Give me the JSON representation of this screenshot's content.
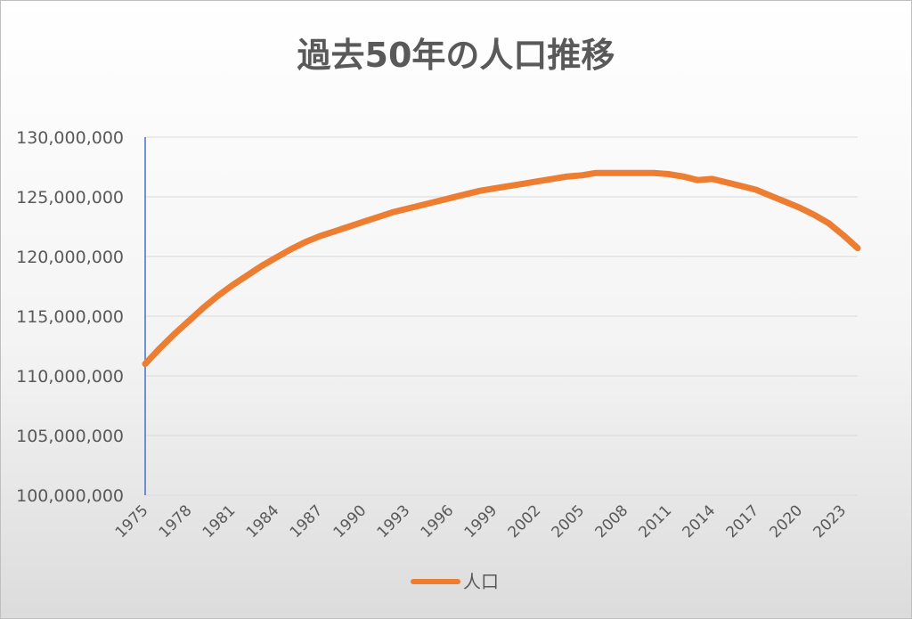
{
  "chart_data": {
    "type": "line",
    "title": "過去50年の人口推移",
    "xlabel": "",
    "ylabel": "",
    "ylim": [
      100000000,
      130000000
    ],
    "yticks": [
      100000000,
      105000000,
      110000000,
      115000000,
      120000000,
      125000000,
      130000000
    ],
    "ytick_labels": [
      "100,000,000",
      "105,000,000",
      "110,000,000",
      "115,000,000",
      "120,000,000",
      "125,000,000",
      "130,000,000"
    ],
    "xtick_labels": [
      "1975",
      "1978",
      "1981",
      "1984",
      "1987",
      "1990",
      "1993",
      "1996",
      "1999",
      "2002",
      "2005",
      "2008",
      "2011",
      "2014",
      "2017",
      "2020",
      "2023"
    ],
    "grid": true,
    "legend_position": "bottom",
    "series": [
      {
        "name": "人口",
        "color": "#ed7d31",
        "x": [
          1975,
          1976,
          1977,
          1978,
          1979,
          1980,
          1981,
          1982,
          1983,
          1984,
          1985,
          1986,
          1987,
          1988,
          1989,
          1990,
          1991,
          1992,
          1993,
          1994,
          1995,
          1996,
          1997,
          1998,
          1999,
          2000,
          2001,
          2002,
          2003,
          2004,
          2005,
          2006,
          2007,
          2008,
          2009,
          2010,
          2011,
          2012,
          2013,
          2014,
          2015,
          2016,
          2017,
          2018,
          2019,
          2020,
          2021,
          2022,
          2023,
          2024
        ],
        "values": [
          111000000,
          112300000,
          113500000,
          114600000,
          115700000,
          116700000,
          117600000,
          118400000,
          119200000,
          119900000,
          120600000,
          121200000,
          121700000,
          122100000,
          122500000,
          122900000,
          123300000,
          123700000,
          124000000,
          124300000,
          124600000,
          124900000,
          125200000,
          125500000,
          125700000,
          125900000,
          126100000,
          126300000,
          126500000,
          126700000,
          126800000,
          127000000,
          127000000,
          127000000,
          127000000,
          127000000,
          126900000,
          126700000,
          126400000,
          126500000,
          126200000,
          125900000,
          125600000,
          125100000,
          124600000,
          124100000,
          123500000,
          122800000,
          121800000,
          120700000
        ]
      }
    ]
  }
}
